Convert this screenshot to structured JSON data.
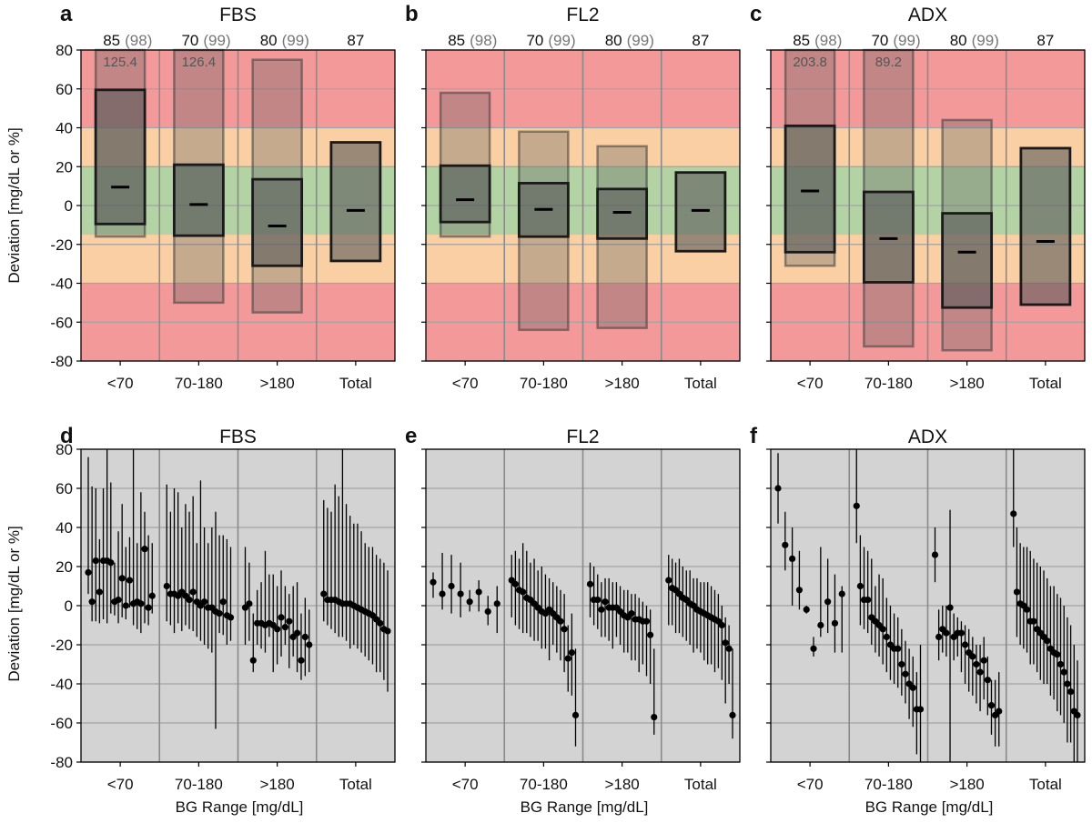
{
  "chart_data": [
    {
      "panel": "a",
      "title": "FBS",
      "type": "box",
      "categories": [
        "<70",
        "70-180",
        ">180",
        "Total"
      ],
      "counts": [
        "85",
        "70",
        "80",
        "87"
      ],
      "counts_paren": [
        "(98)",
        "(99)",
        "(99)",
        ""
      ],
      "ylabel": "Deviation [mg/dL or %]",
      "xlabel": "",
      "ylim": [
        -80,
        80
      ],
      "yticks": [
        -80,
        -60,
        -40,
        -20,
        0,
        20,
        40,
        60,
        80
      ],
      "median": [
        9.5,
        0.5,
        -10.5,
        -2.5
      ],
      "q_low": [
        -9.5,
        -15.5,
        -31.0,
        -28.5
      ],
      "q_high": [
        59.5,
        21.0,
        13.5,
        32.5
      ],
      "range_low": [
        -16.0,
        -50.0,
        -55.0,
        null
      ],
      "range_high": [
        80,
        80,
        75.0,
        null
      ],
      "annotations": [
        "125.4",
        "126.4",
        "",
        ""
      ],
      "zones": {
        "green": [
          -15,
          20
        ],
        "orange": [
          -40,
          40
        ]
      }
    },
    {
      "panel": "b",
      "title": "FL2",
      "type": "box",
      "categories": [
        "<70",
        "70-180",
        ">180",
        "Total"
      ],
      "counts": [
        "85",
        "70",
        "80",
        "87"
      ],
      "counts_paren": [
        "(98)",
        "(99)",
        "(99)",
        ""
      ],
      "ylabel": "",
      "xlabel": "",
      "ylim": [
        -80,
        80
      ],
      "yticks": [
        -80,
        -60,
        -40,
        -20,
        0,
        20,
        40,
        60,
        80
      ],
      "median": [
        3.0,
        -2.0,
        -3.5,
        -2.5
      ],
      "q_low": [
        -8.5,
        -16.0,
        -17.0,
        -23.5
      ],
      "q_high": [
        20.5,
        11.5,
        8.5,
        17.0
      ],
      "range_low": [
        -16.0,
        -64.0,
        -63.0,
        null
      ],
      "range_high": [
        58.0,
        38.0,
        30.5,
        null
      ],
      "annotations": [
        "",
        "",
        "",
        ""
      ],
      "zones": {
        "green": [
          -15,
          20
        ],
        "orange": [
          -40,
          40
        ]
      }
    },
    {
      "panel": "c",
      "title": "ADX",
      "type": "box",
      "categories": [
        "<70",
        "70-180",
        ">180",
        "Total"
      ],
      "counts": [
        "85",
        "70",
        "80",
        "87"
      ],
      "counts_paren": [
        "(98)",
        "(99)",
        "(99)",
        ""
      ],
      "ylabel": "",
      "xlabel": "",
      "ylim": [
        -80,
        80
      ],
      "yticks": [
        -80,
        -60,
        -40,
        -20,
        0,
        20,
        40,
        60,
        80
      ],
      "median": [
        7.5,
        -17.0,
        -24.0,
        -18.5
      ],
      "q_low": [
        -24.0,
        -39.5,
        -52.5,
        -51.0
      ],
      "q_high": [
        41.0,
        7.0,
        -4.0,
        29.5
      ],
      "range_low": [
        -31.0,
        -72.5,
        -74.5,
        null
      ],
      "range_high": [
        80,
        80,
        44.0,
        null
      ],
      "annotations": [
        "203.8",
        "89.2",
        "",
        ""
      ],
      "zones": {
        "green": [
          -15,
          20
        ],
        "orange": [
          -40,
          40
        ]
      }
    },
    {
      "panel": "d",
      "title": "FBS",
      "type": "scatter",
      "categories": [
        "<70",
        "70-180",
        ">180",
        "Total"
      ],
      "ylabel": "Deviation [mg/dL or %]",
      "xlabel": "BG Range [mg/dL]",
      "ylim": [
        -80,
        80
      ],
      "yticks": [
        -80,
        -60,
        -40,
        -20,
        0,
        20,
        40,
        60,
        80
      ],
      "groups": [
        [
          [
            17,
            6,
            76
          ],
          [
            2,
            -8,
            61
          ],
          [
            23,
            -8,
            60
          ],
          [
            7,
            -9,
            34
          ],
          [
            23,
            -7,
            60
          ],
          [
            23,
            -9,
            80
          ],
          [
            22,
            -4,
            63
          ],
          [
            2,
            -5,
            22
          ],
          [
            3,
            -9,
            38
          ],
          [
            14,
            -6,
            52
          ],
          [
            0,
            -7,
            30
          ],
          [
            13,
            -1,
            35
          ],
          [
            1,
            -10,
            80
          ],
          [
            2,
            -12,
            32
          ],
          [
            1,
            -14,
            58
          ],
          [
            29,
            -9,
            48
          ],
          [
            -1,
            -10,
            36
          ],
          [
            5,
            -4,
            32
          ]
        ],
        [
          [
            10,
            -8,
            62
          ],
          [
            6,
            -10,
            48
          ],
          [
            6,
            -14,
            60
          ],
          [
            5,
            -9,
            58
          ],
          [
            7,
            -13,
            40
          ],
          [
            5,
            -10,
            52
          ],
          [
            3,
            -12,
            48
          ],
          [
            7,
            -13,
            56
          ],
          [
            2,
            -16,
            32
          ],
          [
            0,
            -18,
            64
          ],
          [
            2,
            -20,
            40
          ],
          [
            -1,
            -22,
            32
          ],
          [
            -1,
            -24,
            40
          ],
          [
            -3,
            -63,
            48
          ],
          [
            -4,
            -14,
            36
          ],
          [
            2,
            -15,
            36
          ],
          [
            -5,
            -20,
            34
          ],
          [
            -6,
            -18,
            30
          ]
        ],
        [
          [
            -1,
            -20,
            30
          ],
          [
            1,
            -18,
            22
          ],
          [
            -28,
            -34,
            -4
          ],
          [
            -9,
            -20,
            8
          ],
          [
            -9,
            -22,
            12
          ],
          [
            -10,
            -24,
            28
          ],
          [
            -9,
            -16,
            16
          ],
          [
            -10,
            -34,
            16
          ],
          [
            -12,
            -30,
            10
          ],
          [
            -6,
            -26,
            18
          ],
          [
            -11,
            -20,
            10
          ],
          [
            -8,
            -32,
            6
          ],
          [
            -16,
            -26,
            10
          ],
          [
            -14,
            -34,
            12
          ],
          [
            -28,
            -38,
            -4
          ],
          [
            -16,
            -36,
            4
          ],
          [
            -20,
            -34,
            -2
          ]
        ],
        [
          [
            6,
            -8,
            54
          ],
          [
            3,
            -10,
            50
          ],
          [
            3,
            -12,
            48
          ],
          [
            3,
            -14,
            62
          ],
          [
            2,
            -16,
            56
          ],
          [
            1,
            -16,
            80
          ],
          [
            1,
            -18,
            52
          ],
          [
            1,
            -22,
            46
          ],
          [
            0,
            -20,
            42
          ],
          [
            -1,
            -22,
            42
          ],
          [
            -2,
            -24,
            38
          ],
          [
            -3,
            -26,
            32
          ],
          [
            -4,
            -28,
            30
          ],
          [
            -5,
            -30,
            30
          ],
          [
            -7,
            -34,
            26
          ],
          [
            -9,
            -34,
            24
          ],
          [
            -12,
            -38,
            22
          ],
          [
            -13,
            -44,
            18
          ]
        ]
      ]
    },
    {
      "panel": "e",
      "title": "FL2",
      "type": "scatter",
      "categories": [
        "<70",
        "70-180",
        ">180",
        "Total"
      ],
      "ylabel": "",
      "xlabel": "BG Range [mg/dL]",
      "ylim": [
        -80,
        80
      ],
      "yticks": [
        -80,
        -60,
        -40,
        -20,
        0,
        20,
        40,
        60,
        80
      ],
      "groups": [
        [
          [
            12,
            4,
            17
          ],
          [
            6,
            -2,
            27
          ],
          [
            10,
            -4,
            26
          ],
          [
            6,
            -6,
            22
          ],
          [
            2,
            -3,
            8
          ],
          [
            7,
            -3,
            13
          ],
          [
            -3,
            -10,
            5
          ],
          [
            1,
            -14,
            10
          ]
        ],
        [
          [
            13,
            -6,
            26
          ],
          [
            11,
            -10,
            28
          ],
          [
            8,
            -12,
            24
          ],
          [
            7,
            -14,
            32
          ],
          [
            4,
            -14,
            28
          ],
          [
            3,
            -16,
            22
          ],
          [
            1,
            -18,
            24
          ],
          [
            -1,
            -18,
            18
          ],
          [
            -3,
            -22,
            20
          ],
          [
            -4,
            -22,
            16
          ],
          [
            -2,
            -28,
            14
          ],
          [
            -4,
            -20,
            12
          ],
          [
            -6,
            -24,
            10
          ],
          [
            -8,
            -28,
            8
          ],
          [
            -12,
            -34,
            6
          ],
          [
            -27,
            -44,
            -10
          ],
          [
            -24,
            -46,
            -4
          ],
          [
            -56,
            -72,
            -22
          ]
        ],
        [
          [
            11,
            -6,
            22
          ],
          [
            3,
            -10,
            20
          ],
          [
            3,
            -12,
            16
          ],
          [
            -2,
            -16,
            12
          ],
          [
            2,
            -16,
            14
          ],
          [
            -1,
            -18,
            14
          ],
          [
            -1,
            -22,
            12
          ],
          [
            -1,
            -16,
            12
          ],
          [
            -3,
            -20,
            10
          ],
          [
            -5,
            -24,
            8
          ],
          [
            -6,
            -24,
            8
          ],
          [
            -4,
            -28,
            6
          ],
          [
            -7,
            -28,
            6
          ],
          [
            -7,
            -34,
            4
          ],
          [
            -8,
            -30,
            2
          ],
          [
            -8,
            -36,
            0
          ],
          [
            -15,
            -40,
            -2
          ],
          [
            -57,
            -66,
            -22
          ]
        ],
        [
          [
            13,
            -10,
            26
          ],
          [
            9,
            -10,
            24
          ],
          [
            8,
            -14,
            22
          ],
          [
            6,
            -14,
            24
          ],
          [
            4,
            -16,
            20
          ],
          [
            3,
            -18,
            18
          ],
          [
            1,
            -20,
            18
          ],
          [
            0,
            -24,
            14
          ],
          [
            -2,
            -22,
            14
          ],
          [
            -3,
            -24,
            12
          ],
          [
            -4,
            -28,
            12
          ],
          [
            -5,
            -30,
            12
          ],
          [
            -6,
            -30,
            10
          ],
          [
            -7,
            -34,
            8
          ],
          [
            -8,
            -32,
            6
          ],
          [
            -10,
            -38,
            0
          ],
          [
            -19,
            -50,
            -6
          ],
          [
            -22,
            -40,
            -10
          ],
          [
            -56,
            -68,
            -22
          ]
        ]
      ]
    },
    {
      "panel": "f",
      "title": "ADX",
      "type": "scatter",
      "categories": [
        "<70",
        "70-180",
        ">180",
        "Total"
      ],
      "ylabel": "",
      "xlabel": "BG Range [mg/dL]",
      "ylim": [
        -80,
        80
      ],
      "yticks": [
        -80,
        -60,
        -40,
        -20,
        0,
        20,
        40,
        60,
        80
      ],
      "groups": [
        [
          [
            60,
            42,
            78
          ],
          [
            31,
            18,
            48
          ],
          [
            24,
            0,
            40
          ],
          [
            8,
            -2,
            28
          ],
          [
            -2,
            -4,
            0
          ],
          [
            -22,
            -26,
            -16
          ],
          [
            -10,
            -16,
            30
          ],
          [
            2,
            -14,
            24
          ],
          [
            -9,
            -24,
            16
          ],
          [
            6,
            -24,
            10
          ]
        ],
        [
          [
            51,
            32,
            80
          ],
          [
            10,
            -10,
            36
          ],
          [
            3,
            -12,
            30
          ],
          [
            3,
            -14,
            28
          ],
          [
            -6,
            -20,
            24
          ],
          [
            -8,
            -24,
            10
          ],
          [
            -10,
            -26,
            16
          ],
          [
            -12,
            -30,
            14
          ],
          [
            -16,
            -34,
            4
          ],
          [
            -20,
            -38,
            0
          ],
          [
            -22,
            -40,
            -4
          ],
          [
            -22,
            -42,
            -6
          ],
          [
            -30,
            -46,
            -12
          ],
          [
            -35,
            -50,
            -18
          ],
          [
            -40,
            -58,
            -22
          ],
          [
            -42,
            -62,
            -26
          ],
          [
            -53,
            -76,
            -34
          ],
          [
            -53,
            -80,
            -20
          ]
        ],
        [
          [
            26,
            12,
            40
          ],
          [
            -16,
            -28,
            -2
          ],
          [
            -12,
            -24,
            0
          ],
          [
            -14,
            -26,
            0
          ],
          [
            -1,
            -80,
            49
          ],
          [
            -16,
            -28,
            -4
          ],
          [
            -14,
            -26,
            -6
          ],
          [
            -14,
            -34,
            -8
          ],
          [
            -20,
            -40,
            -10
          ],
          [
            -24,
            -44,
            -12
          ],
          [
            -26,
            -46,
            -16
          ],
          [
            -30,
            -50,
            -20
          ],
          [
            -34,
            -54,
            -20
          ],
          [
            -28,
            -48,
            -16
          ],
          [
            -38,
            -56,
            -26
          ],
          [
            -51,
            -66,
            -38
          ],
          [
            -56,
            -72,
            -38
          ],
          [
            -54,
            -72,
            -34
          ]
        ],
        [
          [
            47,
            30,
            80
          ],
          [
            7,
            -16,
            40
          ],
          [
            1,
            -20,
            32
          ],
          [
            0,
            -22,
            30
          ],
          [
            -2,
            -24,
            30
          ],
          [
            -8,
            -30,
            28
          ],
          [
            -8,
            -30,
            24
          ],
          [
            -12,
            -34,
            22
          ],
          [
            -14,
            -38,
            20
          ],
          [
            -16,
            -40,
            18
          ],
          [
            -18,
            -40,
            14
          ],
          [
            -22,
            -46,
            10
          ],
          [
            -24,
            -48,
            10
          ],
          [
            -25,
            -54,
            6
          ],
          [
            -30,
            -56,
            4
          ],
          [
            -34,
            -60,
            0
          ],
          [
            -40,
            -70,
            -6
          ],
          [
            -44,
            -70,
            -10
          ],
          [
            -54,
            -80,
            -20
          ],
          [
            -56,
            -80,
            -28
          ]
        ]
      ]
    }
  ]
}
